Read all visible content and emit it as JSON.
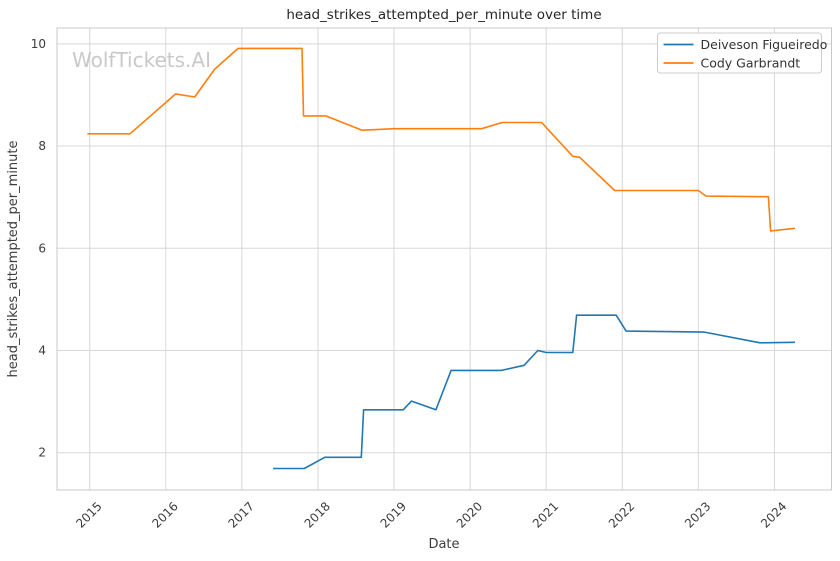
{
  "watermark": "WolfTickets.AI",
  "chart_data": {
    "type": "line",
    "title": "head_strikes_attempted_per_minute over time",
    "xlabel": "Date",
    "ylabel": "head_strikes_attempted_per_minute",
    "x_ticks": [
      2015,
      2016,
      2017,
      2018,
      2019,
      2020,
      2021,
      2022,
      2023,
      2024
    ],
    "y_ticks": [
      2,
      4,
      6,
      8,
      10
    ],
    "xlim": [
      2014.57,
      2024.75
    ],
    "ylim": [
      1.27,
      10.31
    ],
    "grid": true,
    "legend": {
      "position": "upper-right",
      "entries": [
        "Deiveson Figueiredo",
        "Cody Garbrandt"
      ]
    },
    "palette": {
      "grid": "#d8d8d8",
      "spine": "#c8c8c8",
      "legend_border": "#cccccc",
      "tick_text": "#3d3d3d",
      "title_text": "#262626",
      "watermark_text": "#c9c9c9"
    },
    "series": [
      {
        "name": "Deiveson Figueiredo",
        "color": "#1f77b4",
        "points": [
          [
            2017.41,
            1.69
          ],
          [
            2017.82,
            1.69
          ],
          [
            2018.09,
            1.91
          ],
          [
            2018.57,
            1.91
          ],
          [
            2018.6,
            2.84
          ],
          [
            2019.12,
            2.84
          ],
          [
            2019.23,
            3.01
          ],
          [
            2019.55,
            2.84
          ],
          [
            2019.75,
            3.61
          ],
          [
            2020.41,
            3.61
          ],
          [
            2020.71,
            3.71
          ],
          [
            2020.89,
            4.0
          ],
          [
            2021.0,
            3.96
          ],
          [
            2021.35,
            3.96
          ],
          [
            2021.4,
            4.69
          ],
          [
            2021.92,
            4.69
          ],
          [
            2022.05,
            4.38
          ],
          [
            2023.08,
            4.36
          ],
          [
            2023.81,
            4.15
          ],
          [
            2024.27,
            4.16
          ]
        ]
      },
      {
        "name": "Cody Garbrandt",
        "color": "#ff7f0e",
        "points": [
          [
            2014.97,
            8.24
          ],
          [
            2015.53,
            8.24
          ],
          [
            2016.13,
            9.02
          ],
          [
            2016.38,
            8.96
          ],
          [
            2016.64,
            9.5
          ],
          [
            2016.95,
            9.91
          ],
          [
            2017.79,
            9.91
          ],
          [
            2017.81,
            8.59
          ],
          [
            2018.1,
            8.59
          ],
          [
            2018.58,
            8.31
          ],
          [
            2019.0,
            8.34
          ],
          [
            2020.15,
            8.34
          ],
          [
            2020.42,
            8.46
          ],
          [
            2020.94,
            8.46
          ],
          [
            2021.35,
            7.8
          ],
          [
            2021.44,
            7.78
          ],
          [
            2021.9,
            7.13
          ],
          [
            2023.0,
            7.13
          ],
          [
            2023.1,
            7.02
          ],
          [
            2023.92,
            7.01
          ],
          [
            2023.95,
            6.34
          ],
          [
            2024.27,
            6.39
          ]
        ]
      }
    ]
  }
}
